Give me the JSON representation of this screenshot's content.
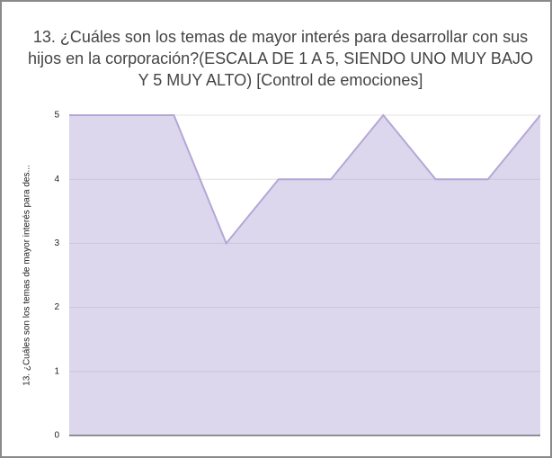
{
  "chart_data": {
    "type": "area",
    "title": [
      "13. ¿Cuáles son los temas de mayor interés para desarrollar con sus",
      "hijos en la corporación?(ESCALA DE 1 A 5, SIENDO UNO MUY BAJO",
      "Y 5 MUY ALTO) [Control de emociones]"
    ],
    "y_label": "13. ¿Cuáles son los temas de mayor interés para des...",
    "categories": [
      null,
      null,
      null,
      null,
      null,
      null,
      null,
      null,
      null,
      null
    ],
    "series": [
      {
        "name": null,
        "color": "#b4a7d6",
        "values": [
          5,
          5,
          5,
          3,
          4,
          4,
          5,
          4,
          4,
          5
        ]
      }
    ],
    "ylim": [
      0,
      5
    ],
    "yticks": [
      0,
      1,
      2,
      3,
      4,
      5
    ],
    "grid": true
  }
}
